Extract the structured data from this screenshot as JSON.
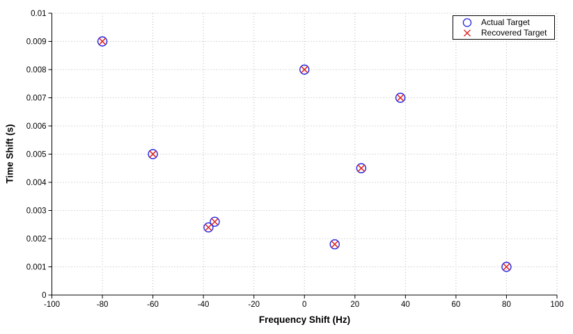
{
  "chart_data": {
    "type": "scatter",
    "title": "",
    "xlabel": "Frequency Shift (Hz)",
    "ylabel": "Time Shift (s)",
    "xlim": [
      -100,
      100
    ],
    "ylim": [
      0,
      0.01
    ],
    "x_ticks": [
      -100,
      -80,
      -60,
      -40,
      -20,
      0,
      20,
      40,
      60,
      80,
      100
    ],
    "x_tick_labels": [
      "-100",
      "-80",
      "-60",
      "-40",
      "-20",
      "0",
      "20",
      "40",
      "60",
      "80",
      "100"
    ],
    "y_ticks": [
      0,
      0.001,
      0.002,
      0.003,
      0.004,
      0.005,
      0.006,
      0.007,
      0.008,
      0.009,
      0.01
    ],
    "y_tick_labels": [
      "0",
      "0.001",
      "0.002",
      "0.003",
      "0.004",
      "0.005",
      "0.006",
      "0.007",
      "0.008",
      "0.009",
      "0.01"
    ],
    "grid": true,
    "grid_color": "#b3b3b3",
    "axis_color": "#000000",
    "legend_position": "top-right",
    "series": [
      {
        "id": "actual",
        "name": "Actual Target",
        "marker": "circle",
        "color": "#2222dd",
        "points": [
          [
            -80,
            0.009
          ],
          [
            -60,
            0.005
          ],
          [
            -38,
            0.0024
          ],
          [
            -35.5,
            0.0026
          ],
          [
            0,
            0.008
          ],
          [
            12,
            0.0018
          ],
          [
            22.5,
            0.0045
          ],
          [
            38,
            0.007
          ],
          [
            80,
            0.001
          ]
        ]
      },
      {
        "id": "recovered",
        "name": "Recovered Target",
        "marker": "x",
        "color": "#dd2222",
        "points": [
          [
            -80,
            0.009
          ],
          [
            -60,
            0.005
          ],
          [
            -38,
            0.0024
          ],
          [
            -35.5,
            0.0026
          ],
          [
            0,
            0.008
          ],
          [
            12,
            0.0018
          ],
          [
            22.5,
            0.0045
          ],
          [
            38,
            0.007
          ],
          [
            80,
            0.001
          ]
        ]
      }
    ]
  }
}
